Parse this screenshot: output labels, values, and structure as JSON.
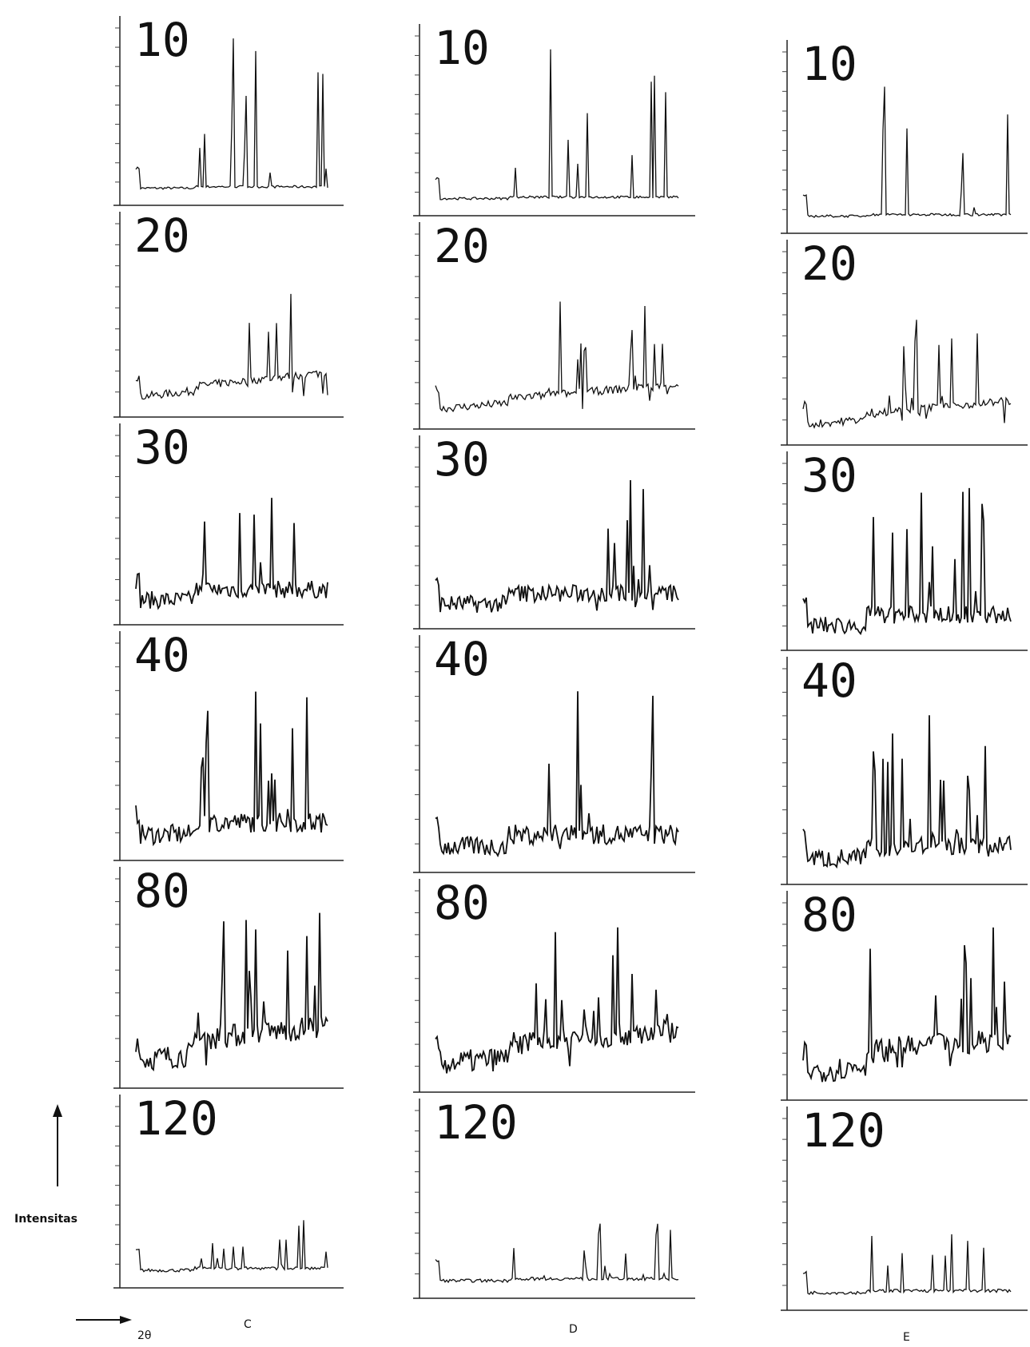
{
  "axis": {
    "y_label": "Intensitas",
    "x_label": "2θ"
  },
  "columns": [
    {
      "label": "C",
      "rows": [
        "10",
        "20",
        "30",
        "40",
        "80",
        "120"
      ]
    },
    {
      "label": "D",
      "rows": [
        "10",
        "20",
        "30",
        "40",
        "80",
        "120"
      ]
    },
    {
      "label": "E",
      "rows": [
        "10",
        "20",
        "30",
        "40",
        "80",
        "120"
      ]
    }
  ]
}
